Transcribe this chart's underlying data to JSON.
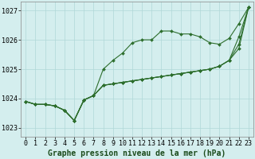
{
  "title": "Graphe pression niveau de la mer (hPa)",
  "background_color": "#d4eeee",
  "grid_color": "#b0d8d8",
  "line_color": "#2d6e2d",
  "marker_color": "#2d6e2d",
  "xlim": [
    -0.5,
    23.5
  ],
  "ylim": [
    1022.7,
    1027.3
  ],
  "yticks": [
    1023,
    1024,
    1025,
    1026,
    1027
  ],
  "xticks": [
    0,
    1,
    2,
    3,
    4,
    5,
    6,
    7,
    8,
    9,
    10,
    11,
    12,
    13,
    14,
    15,
    16,
    17,
    18,
    19,
    20,
    21,
    22,
    23
  ],
  "line1": [
    1023.9,
    1023.8,
    1023.8,
    1023.75,
    1023.6,
    1023.25,
    1023.95,
    1024.1,
    1025.0,
    1025.3,
    1025.55,
    1025.9,
    1026.0,
    1026.0,
    1026.3,
    1026.3,
    1026.2,
    1026.2,
    1026.1,
    1025.9,
    1025.85,
    1026.05,
    1026.55,
    1027.1
  ],
  "line2": [
    1023.9,
    1023.8,
    1023.8,
    1023.75,
    1023.6,
    1023.25,
    1023.95,
    1024.1,
    1024.45,
    1024.5,
    1024.55,
    1024.6,
    1024.65,
    1024.7,
    1024.75,
    1024.8,
    1024.85,
    1024.9,
    1024.95,
    1025.0,
    1025.1,
    1025.3,
    1025.7,
    1027.1
  ],
  "line3": [
    1023.9,
    1023.8,
    1023.8,
    1023.75,
    1023.6,
    1023.25,
    1023.95,
    1024.1,
    1024.45,
    1024.5,
    1024.55,
    1024.6,
    1024.65,
    1024.7,
    1024.75,
    1024.8,
    1024.85,
    1024.9,
    1024.95,
    1025.0,
    1025.1,
    1025.3,
    1025.85,
    1027.1
  ],
  "line4": [
    1023.9,
    1023.8,
    1023.8,
    1023.75,
    1023.6,
    1023.25,
    1023.95,
    1024.1,
    1024.45,
    1024.5,
    1024.55,
    1024.6,
    1024.65,
    1024.7,
    1024.75,
    1024.8,
    1024.85,
    1024.9,
    1024.95,
    1025.0,
    1025.1,
    1025.3,
    1026.1,
    1027.1
  ],
  "tick_fontsize": 6,
  "xlabel_fontsize": 7
}
